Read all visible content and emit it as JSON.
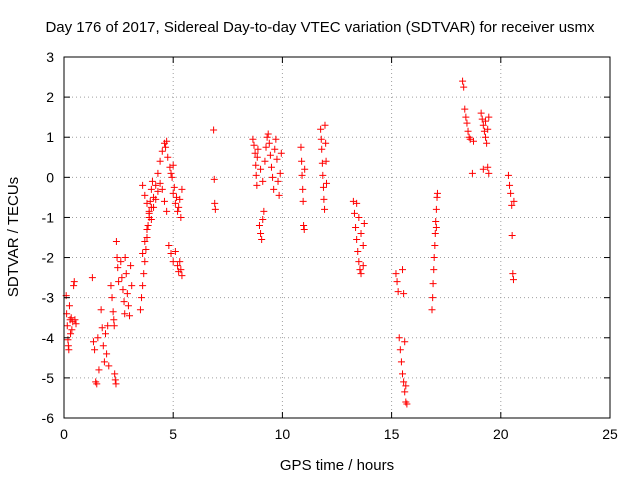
{
  "chart_data": {
    "type": "scatter",
    "title": "Day 176 of 2017, Sidereal Day-to-day VTEC variation (SDTVAR) for receiver usmx",
    "xlabel": "GPS time / hours",
    "ylabel": "SDTVAR / TECUs",
    "xlim": [
      0,
      25
    ],
    "ylim": [
      -6,
      3
    ],
    "xticks": [
      0,
      5,
      10,
      15,
      20,
      25
    ],
    "yticks": [
      -6,
      -5,
      -4,
      -3,
      -2,
      -1,
      0,
      1,
      2,
      3
    ],
    "xtick_labels": [
      "0",
      "5",
      "10",
      "15",
      "20",
      "25"
    ],
    "ytick_labels": [
      "-6",
      "-5",
      "-4",
      "-3",
      "-2",
      "-1",
      "0",
      "1",
      "2",
      "3"
    ],
    "grid": true,
    "marker": "+",
    "color": "#ff0000",
    "series": [
      {
        "values_xy": [
          [
            0.1,
            -2.95
          ],
          [
            0.12,
            -3.4
          ],
          [
            0.15,
            -3.7
          ],
          [
            0.18,
            -4.05
          ],
          [
            0.2,
            -4.2
          ],
          [
            0.22,
            -4.3
          ],
          [
            0.25,
            -3.2
          ],
          [
            0.28,
            -3.55
          ],
          [
            0.3,
            -3.9
          ],
          [
            0.33,
            -3.5
          ],
          [
            0.36,
            -3.8
          ],
          [
            0.4,
            -3.6
          ],
          [
            0.44,
            -2.7
          ],
          [
            0.47,
            -2.6
          ],
          [
            0.5,
            -3.55
          ],
          [
            0.55,
            -3.65
          ],
          [
            1.3,
            -2.5
          ],
          [
            1.35,
            -4.1
          ],
          [
            1.4,
            -4.3
          ],
          [
            1.45,
            -5.1
          ],
          [
            1.5,
            -5.15
          ],
          [
            1.55,
            -4.0
          ],
          [
            1.6,
            -4.8
          ],
          [
            1.7,
            -3.3
          ],
          [
            1.75,
            -3.75
          ],
          [
            1.8,
            -4.2
          ],
          [
            1.85,
            -4.6
          ],
          [
            1.9,
            -3.9
          ],
          [
            1.95,
            -4.4
          ],
          [
            2.0,
            -3.7
          ],
          [
            2.05,
            -4.7
          ],
          [
            2.15,
            -2.7
          ],
          [
            2.2,
            -3.0
          ],
          [
            2.25,
            -3.35
          ],
          [
            2.28,
            -3.55
          ],
          [
            2.3,
            -3.7
          ],
          [
            2.32,
            -4.9
          ],
          [
            2.35,
            -5.05
          ],
          [
            2.38,
            -5.15
          ],
          [
            2.4,
            -1.6
          ],
          [
            2.43,
            -2.0
          ],
          [
            2.46,
            -2.25
          ],
          [
            2.5,
            -2.6
          ],
          [
            2.6,
            -2.1
          ],
          [
            2.65,
            -2.5
          ],
          [
            2.7,
            -2.8
          ],
          [
            2.75,
            -3.1
          ],
          [
            2.78,
            -3.4
          ],
          [
            2.8,
            -2.0
          ],
          [
            2.85,
            -2.4
          ],
          [
            2.9,
            -2.9
          ],
          [
            2.95,
            -3.2
          ],
          [
            3.0,
            -3.45
          ],
          [
            3.05,
            -2.2
          ],
          [
            3.1,
            -2.7
          ],
          [
            3.5,
            -3.3
          ],
          [
            3.55,
            -3.0
          ],
          [
            3.6,
            -2.7
          ],
          [
            3.65,
            -2.4
          ],
          [
            3.7,
            -2.1
          ],
          [
            3.75,
            -1.8
          ],
          [
            3.8,
            -1.5
          ],
          [
            3.85,
            -1.2
          ],
          [
            3.9,
            -0.9
          ],
          [
            3.95,
            -0.6
          ],
          [
            4.0,
            -0.3
          ],
          [
            4.05,
            -0.1
          ],
          [
            3.6,
            -1.9
          ],
          [
            3.7,
            -1.6
          ],
          [
            3.8,
            -1.3
          ],
          [
            3.9,
            -1.0
          ],
          [
            4.0,
            -0.75
          ],
          [
            4.1,
            -0.5
          ],
          [
            4.2,
            -0.2
          ],
          [
            4.3,
            0.1
          ],
          [
            4.4,
            0.4
          ],
          [
            4.5,
            0.65
          ],
          [
            4.6,
            0.85
          ],
          [
            4.7,
            0.9
          ],
          [
            3.6,
            -0.2
          ],
          [
            3.7,
            -0.45
          ],
          [
            3.8,
            -0.65
          ],
          [
            3.9,
            -0.85
          ],
          [
            4.0,
            -1.05
          ],
          [
            4.1,
            -0.75
          ],
          [
            4.2,
            -0.55
          ],
          [
            4.3,
            -0.35
          ],
          [
            4.4,
            -0.15
          ],
          [
            4.5,
            -0.3
          ],
          [
            4.6,
            -0.6
          ],
          [
            4.7,
            -0.85
          ],
          [
            4.65,
            0.75
          ],
          [
            4.75,
            0.5
          ],
          [
            4.85,
            0.25
          ],
          [
            4.95,
            0.0
          ],
          [
            5.05,
            -0.25
          ],
          [
            5.15,
            -0.5
          ],
          [
            5.25,
            -0.75
          ],
          [
            5.35,
            -1.0
          ],
          [
            4.8,
            -1.7
          ],
          [
            4.9,
            -1.9
          ],
          [
            5.0,
            -2.1
          ],
          [
            5.1,
            -1.85
          ],
          [
            5.2,
            -2.2
          ],
          [
            5.25,
            -2.35
          ],
          [
            5.3,
            -2.1
          ],
          [
            5.35,
            -2.3
          ],
          [
            5.4,
            -2.45
          ],
          [
            5.0,
            -0.4
          ],
          [
            5.1,
            -0.65
          ],
          [
            5.2,
            -0.85
          ],
          [
            5.3,
            -0.55
          ],
          [
            5.4,
            -0.3
          ],
          [
            4.9,
            0.1
          ],
          [
            5.0,
            0.3
          ],
          [
            6.85,
            1.18
          ],
          [
            6.88,
            -0.05
          ],
          [
            6.9,
            -0.65
          ],
          [
            6.93,
            -0.8
          ],
          [
            8.65,
            0.95
          ],
          [
            8.7,
            0.8
          ],
          [
            8.75,
            0.6
          ],
          [
            8.78,
            0.3
          ],
          [
            8.8,
            0.05
          ],
          [
            8.83,
            -0.2
          ],
          [
            8.85,
            0.5
          ],
          [
            8.88,
            0.7
          ],
          [
            8.95,
            -1.2
          ],
          [
            9.0,
            -1.4
          ],
          [
            9.05,
            -1.55
          ],
          [
            9.1,
            -1.05
          ],
          [
            9.15,
            -0.85
          ],
          [
            9.0,
            0.2
          ],
          [
            9.1,
            -0.1
          ],
          [
            9.2,
            0.4
          ],
          [
            9.25,
            0.75
          ],
          [
            9.3,
            1.0
          ],
          [
            9.35,
            1.08
          ],
          [
            9.4,
            0.85
          ],
          [
            9.45,
            0.55
          ],
          [
            9.5,
            0.25
          ],
          [
            9.55,
            0.0
          ],
          [
            9.6,
            -0.3
          ],
          [
            9.65,
            0.7
          ],
          [
            9.7,
            0.95
          ],
          [
            9.75,
            0.45
          ],
          [
            9.8,
            -0.1
          ],
          [
            9.85,
            -0.45
          ],
          [
            9.9,
            0.1
          ],
          [
            9.95,
            0.6
          ],
          [
            10.85,
            0.75
          ],
          [
            10.88,
            0.4
          ],
          [
            10.9,
            0.05
          ],
          [
            10.93,
            -0.3
          ],
          [
            10.95,
            -0.6
          ],
          [
            10.97,
            -1.2
          ],
          [
            11.0,
            -1.3
          ],
          [
            11.02,
            0.2
          ],
          [
            11.75,
            1.2
          ],
          [
            11.78,
            0.95
          ],
          [
            11.8,
            0.7
          ],
          [
            11.83,
            0.35
          ],
          [
            11.85,
            0.05
          ],
          [
            11.88,
            -0.25
          ],
          [
            11.9,
            -0.55
          ],
          [
            11.93,
            -0.8
          ],
          [
            11.95,
            1.3
          ],
          [
            11.98,
            0.85
          ],
          [
            12.0,
            0.4
          ],
          [
            12.02,
            -0.15
          ],
          [
            13.25,
            -0.6
          ],
          [
            13.3,
            -0.9
          ],
          [
            13.35,
            -1.25
          ],
          [
            13.4,
            -1.55
          ],
          [
            13.45,
            -1.85
          ],
          [
            13.5,
            -2.1
          ],
          [
            13.55,
            -2.3
          ],
          [
            13.6,
            -2.4
          ],
          [
            13.4,
            -0.65
          ],
          [
            13.5,
            -1.0
          ],
          [
            13.6,
            -1.4
          ],
          [
            13.7,
            -1.7
          ],
          [
            13.7,
            -2.2
          ],
          [
            13.75,
            -1.15
          ],
          [
            15.2,
            -2.4
          ],
          [
            15.25,
            -2.6
          ],
          [
            15.3,
            -2.85
          ],
          [
            15.35,
            -4.0
          ],
          [
            15.4,
            -4.3
          ],
          [
            15.45,
            -4.6
          ],
          [
            15.5,
            -4.9
          ],
          [
            15.55,
            -5.1
          ],
          [
            15.6,
            -5.35
          ],
          [
            15.65,
            -5.6
          ],
          [
            15.7,
            -5.65
          ],
          [
            15.5,
            -2.3
          ],
          [
            15.55,
            -2.9
          ],
          [
            15.6,
            -4.1
          ],
          [
            15.65,
            -5.2
          ],
          [
            16.85,
            -3.3
          ],
          [
            16.88,
            -3.0
          ],
          [
            16.9,
            -2.65
          ],
          [
            16.93,
            -2.3
          ],
          [
            16.95,
            -2.0
          ],
          [
            16.98,
            -1.7
          ],
          [
            17.0,
            -1.4
          ],
          [
            17.02,
            -1.1
          ],
          [
            17.05,
            -0.8
          ],
          [
            17.08,
            -0.5
          ],
          [
            17.1,
            -0.4
          ],
          [
            17.05,
            -1.25
          ],
          [
            18.25,
            2.4
          ],
          [
            18.3,
            2.25
          ],
          [
            18.35,
            1.7
          ],
          [
            18.4,
            1.5
          ],
          [
            18.45,
            1.35
          ],
          [
            18.5,
            1.15
          ],
          [
            18.55,
            1.0
          ],
          [
            18.6,
            0.95
          ],
          [
            18.7,
            0.1
          ],
          [
            18.75,
            0.9
          ],
          [
            19.1,
            1.6
          ],
          [
            19.15,
            1.45
          ],
          [
            19.2,
            1.3
          ],
          [
            19.25,
            1.15
          ],
          [
            19.3,
            1.0
          ],
          [
            19.35,
            0.85
          ],
          [
            19.4,
            0.25
          ],
          [
            19.45,
            0.1
          ],
          [
            19.2,
            0.2
          ],
          [
            19.3,
            1.4
          ],
          [
            19.4,
            1.2
          ],
          [
            19.45,
            1.5
          ],
          [
            20.35,
            0.05
          ],
          [
            20.4,
            -0.2
          ],
          [
            20.45,
            -0.4
          ],
          [
            20.5,
            -0.7
          ],
          [
            20.52,
            -1.45
          ],
          [
            20.55,
            -2.4
          ],
          [
            20.58,
            -2.55
          ],
          [
            20.6,
            -0.6
          ]
        ]
      }
    ]
  }
}
